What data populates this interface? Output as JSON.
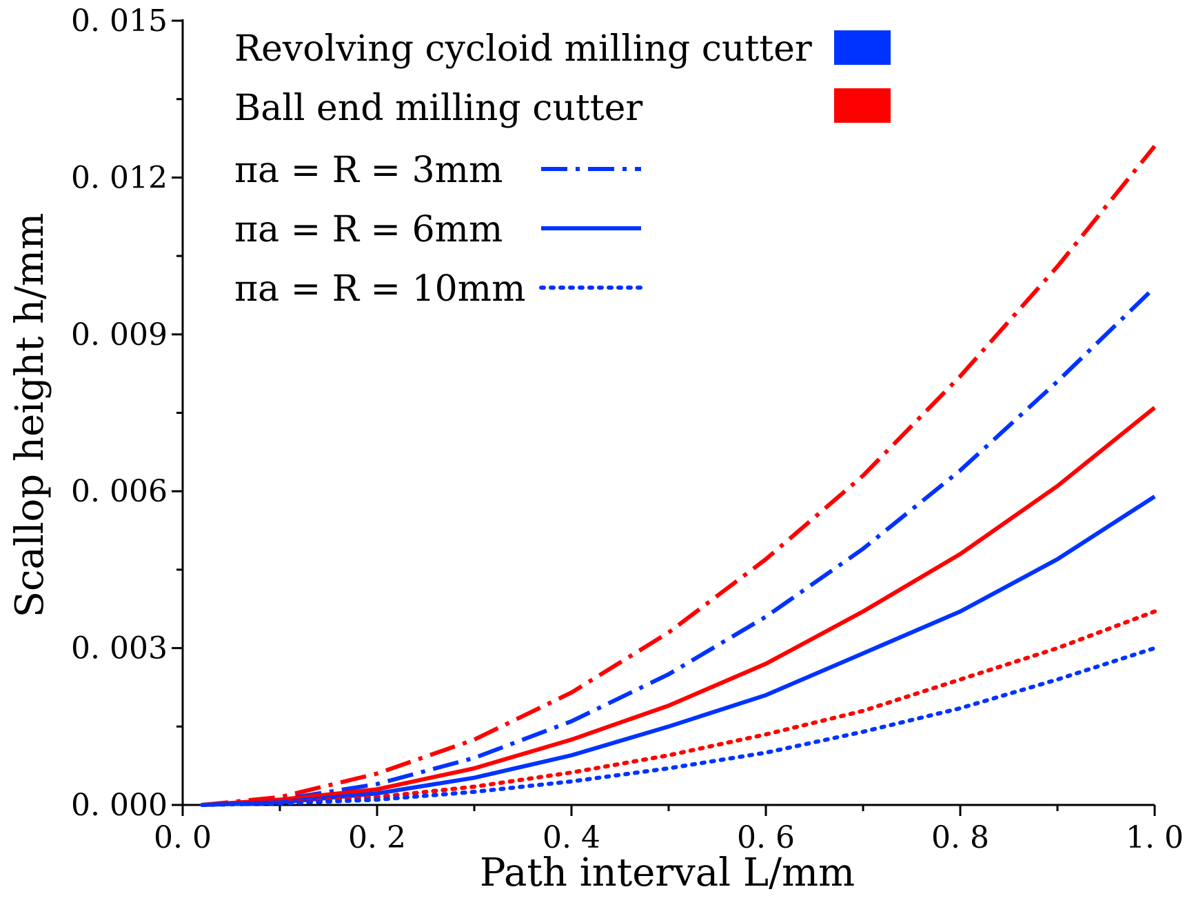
{
  "chart_data": {
    "type": "line",
    "title": "",
    "xlabel": "Path interval L/mm",
    "ylabel": "Scallop height h/mm",
    "xlim": [
      0.0,
      1.0
    ],
    "ylim": [
      0.0,
      0.015
    ],
    "xticks": [
      0.0,
      0.2,
      0.4,
      0.6,
      0.8,
      1.0
    ],
    "xtick_labels": [
      "0. 0",
      "0. 2",
      "0. 4",
      "0. 6",
      "0. 8",
      "1. 0"
    ],
    "yticks": [
      0.0,
      0.003,
      0.006,
      0.009,
      0.012,
      0.015
    ],
    "ytick_labels": [
      "0. 000",
      "0. 003",
      "0. 006",
      "0. 009",
      "0. 012",
      "0. 015"
    ],
    "grid": false,
    "legend_placement": "top-left",
    "legend": {
      "colors": [
        {
          "label": "Revolving cycloid milling cutter",
          "color": "#0033ff"
        },
        {
          "label": "Ball end milling cutter",
          "color": "#ff0000"
        }
      ],
      "styles": [
        {
          "label": "πa = R = 3mm",
          "style": "dashdot"
        },
        {
          "label": "πa = R = 6mm",
          "style": "solid"
        },
        {
          "label": "πa = R = 10mm",
          "style": "dotted"
        }
      ]
    },
    "x": [
      0.02,
      0.1,
      0.2,
      0.3,
      0.4,
      0.5,
      0.6,
      0.7,
      0.8,
      0.9,
      1.0
    ],
    "series": [
      {
        "name": "Ball end milling cutter, πa = R = 3mm",
        "color": "#ff0000",
        "style": "dashdot",
        "values": [
          0.0,
          0.00015,
          0.0006,
          0.00125,
          0.00215,
          0.0033,
          0.0047,
          0.0063,
          0.0082,
          0.0103,
          0.0126
        ]
      },
      {
        "name": "Revolving cycloid milling cutter, πa = R = 3mm",
        "color": "#0033ff",
        "style": "dashdot",
        "values": [
          0.0,
          0.0001,
          0.0004,
          0.0009,
          0.0016,
          0.0025,
          0.0036,
          0.0049,
          0.0064,
          0.0081,
          0.0099
        ]
      },
      {
        "name": "Ball end milling cutter, πa = R = 6mm",
        "color": "#ff0000",
        "style": "solid",
        "values": [
          0.0,
          0.0001,
          0.0003,
          0.0007,
          0.00125,
          0.0019,
          0.0027,
          0.0037,
          0.0048,
          0.0061,
          0.0076
        ]
      },
      {
        "name": "Revolving cycloid milling cutter, πa = R = 6mm",
        "color": "#0033ff",
        "style": "solid",
        "values": [
          0.0,
          5e-05,
          0.00022,
          0.00052,
          0.00095,
          0.0015,
          0.0021,
          0.0029,
          0.0037,
          0.0047,
          0.0059
        ]
      },
      {
        "name": "Ball end milling cutter, πa = R = 10mm",
        "color": "#ff0000",
        "style": "dotted",
        "values": [
          0.0,
          4e-05,
          0.00015,
          0.00035,
          0.00062,
          0.00095,
          0.00135,
          0.0018,
          0.0024,
          0.003,
          0.0037
        ]
      },
      {
        "name": "Revolving cycloid milling cutter, πa = R = 10mm",
        "color": "#0033ff",
        "style": "dotted",
        "values": [
          0.0,
          3e-05,
          0.0001,
          0.00025,
          0.00045,
          0.0007,
          0.001,
          0.0014,
          0.00185,
          0.0024,
          0.003
        ]
      }
    ]
  }
}
